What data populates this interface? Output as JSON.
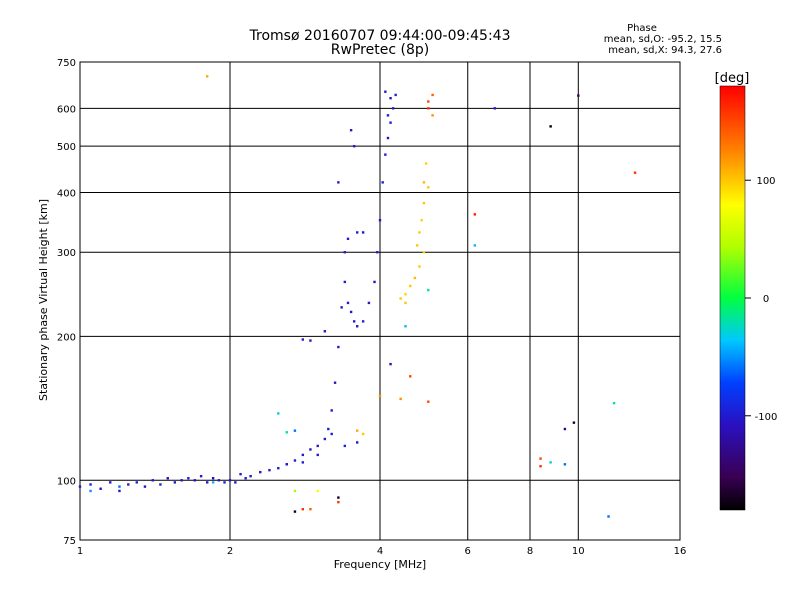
{
  "chart_data": {
    "type": "scatter",
    "title": "Tromsø 20160707 09:44:00-09:45:43",
    "subtitle": "RwPretec (8p)",
    "xlabel": "Frequency [MHz]",
    "ylabel": "Stationary phase Virtual Height [km]",
    "x_scale": "log",
    "y_scale": "log",
    "xlim": [
      1,
      16
    ],
    "ylim": [
      75,
      750
    ],
    "x_ticks": [
      1,
      2,
      4,
      6,
      8,
      10,
      16
    ],
    "y_ticks": [
      75,
      100,
      200,
      300,
      400,
      500,
      600,
      750
    ],
    "grid": true,
    "phase_info": {
      "title": "Phase",
      "line_o": "mean, sd,O: -95.2, 15.5",
      "line_x": "mean, sd,X:  94.3, 27.6"
    },
    "colorbar": {
      "label": "[deg]",
      "range": [
        -180,
        180
      ],
      "ticks": [
        100,
        0,
        -100
      ]
    },
    "series": [
      {
        "points": [
          [
            1.0,
            97,
            -100
          ],
          [
            1.05,
            98,
            -95
          ],
          [
            1.1,
            96,
            -110
          ],
          [
            1.15,
            99,
            -100
          ],
          [
            1.2,
            95,
            -105
          ],
          [
            1.25,
            98,
            -100
          ],
          [
            1.3,
            99,
            -90
          ],
          [
            1.35,
            97,
            -110
          ],
          [
            1.4,
            100,
            -100
          ],
          [
            1.45,
            98,
            -95
          ],
          [
            1.5,
            101,
            -105
          ],
          [
            1.55,
            99,
            -100
          ],
          [
            1.6,
            100,
            -100
          ],
          [
            1.65,
            101,
            -95
          ],
          [
            1.7,
            100,
            -105
          ],
          [
            1.75,
            102,
            -100
          ],
          [
            1.8,
            99,
            -100
          ],
          [
            1.85,
            101,
            -110
          ],
          [
            1.9,
            100,
            -100
          ],
          [
            1.95,
            99,
            -95
          ],
          [
            2.0,
            100,
            -100
          ],
          [
            2.05,
            99,
            -105
          ],
          [
            2.1,
            103,
            -100
          ],
          [
            2.15,
            101,
            -95
          ],
          [
            2.2,
            102,
            -100
          ],
          [
            2.3,
            104,
            -105
          ],
          [
            2.4,
            105,
            -100
          ],
          [
            2.5,
            106,
            -100
          ],
          [
            2.6,
            108,
            -95
          ],
          [
            2.7,
            110,
            -100
          ],
          [
            2.8,
            113,
            -100
          ],
          [
            2.9,
            116,
            -105
          ],
          [
            3.0,
            118,
            -100
          ],
          [
            3.1,
            122,
            -100
          ],
          [
            3.15,
            128,
            -95
          ],
          [
            3.2,
            140,
            -100
          ],
          [
            3.25,
            160,
            -105
          ],
          [
            3.3,
            190,
            -100
          ],
          [
            3.35,
            230,
            -100
          ],
          [
            3.4,
            260,
            -95
          ],
          [
            3.45,
            235,
            -100
          ],
          [
            3.5,
            225,
            -105
          ],
          [
            3.55,
            215,
            -100
          ],
          [
            3.6,
            210,
            -100
          ],
          [
            3.7,
            215,
            -95
          ],
          [
            3.8,
            235,
            -100
          ],
          [
            3.9,
            260,
            -105
          ],
          [
            3.95,
            300,
            -100
          ],
          [
            4.0,
            350,
            -100
          ],
          [
            4.05,
            420,
            -95
          ],
          [
            4.1,
            480,
            -100
          ],
          [
            4.15,
            520,
            -105
          ],
          [
            4.2,
            560,
            -100
          ],
          [
            4.25,
            600,
            -100
          ],
          [
            4.3,
            640,
            -95
          ],
          [
            4.1,
            650,
            -100
          ],
          [
            4.2,
            630,
            -105
          ],
          [
            4.15,
            580,
            -100
          ],
          [
            3.4,
            300,
            -100
          ],
          [
            3.45,
            320,
            -100
          ],
          [
            3.6,
            330,
            -95
          ],
          [
            3.7,
            330,
            -105
          ],
          [
            3.3,
            420,
            -100
          ],
          [
            3.5,
            540,
            -100
          ],
          [
            3.55,
            500,
            -100
          ],
          [
            3.6,
            120,
            -100
          ],
          [
            3.4,
            118,
            -95
          ],
          [
            3.2,
            125,
            -100
          ],
          [
            3.0,
            113,
            -100
          ],
          [
            2.8,
            109,
            -95
          ],
          [
            2.6,
            108,
            -100
          ],
          [
            2.9,
            196,
            -100
          ],
          [
            2.8,
            197,
            -100
          ],
          [
            3.1,
            205,
            -105
          ],
          [
            2.5,
            138,
            -30
          ],
          [
            2.6,
            126,
            -20
          ],
          [
            2.7,
            127,
            -60
          ],
          [
            1.85,
            99,
            -40
          ],
          [
            1.2,
            97,
            -60
          ],
          [
            1.05,
            95,
            -50
          ],
          [
            4.4,
            240,
            100
          ],
          [
            4.5,
            245,
            95
          ],
          [
            4.6,
            255,
            100
          ],
          [
            4.7,
            265,
            105
          ],
          [
            4.8,
            280,
            100
          ],
          [
            4.9,
            300,
            95
          ],
          [
            4.75,
            310,
            100
          ],
          [
            4.8,
            330,
            100
          ],
          [
            4.85,
            350,
            95
          ],
          [
            4.9,
            380,
            100
          ],
          [
            4.9,
            420,
            105
          ],
          [
            5.0,
            410,
            100
          ],
          [
            4.95,
            460,
            95
          ],
          [
            4.5,
            235,
            100
          ],
          [
            5.0,
            620,
            150
          ],
          [
            5.1,
            640,
            140
          ],
          [
            5.0,
            600,
            160
          ],
          [
            5.1,
            580,
            120
          ],
          [
            1.8,
            700,
            110
          ],
          [
            6.2,
            360,
            170
          ],
          [
            6.2,
            310,
            -40
          ],
          [
            5.0,
            250,
            -20
          ],
          [
            4.5,
            210,
            -40
          ],
          [
            4.2,
            175,
            -110
          ],
          [
            4.6,
            165,
            150
          ],
          [
            4.0,
            150,
            120
          ],
          [
            4.4,
            148,
            120
          ],
          [
            5.0,
            146,
            150
          ],
          [
            3.6,
            127,
            110
          ],
          [
            3.7,
            125,
            100
          ],
          [
            8.4,
            111,
            150
          ],
          [
            8.8,
            109,
            -30
          ],
          [
            9.4,
            108,
            -60
          ],
          [
            8.4,
            107,
            160
          ],
          [
            9.4,
            128,
            -130
          ],
          [
            9.8,
            132,
            -170
          ],
          [
            11.8,
            145,
            -20
          ],
          [
            13.0,
            440,
            160
          ],
          [
            10.0,
            638,
            -150
          ],
          [
            8.8,
            550,
            -180
          ],
          [
            6.8,
            600,
            -100
          ],
          [
            11.5,
            84,
            -60
          ],
          [
            3.3,
            90,
            160
          ],
          [
            3.3,
            92,
            -170
          ],
          [
            3.0,
            95,
            80
          ],
          [
            2.7,
            95,
            40
          ],
          [
            2.8,
            87,
            160
          ],
          [
            2.7,
            86,
            -170
          ],
          [
            2.9,
            87,
            140
          ]
        ]
      }
    ]
  }
}
